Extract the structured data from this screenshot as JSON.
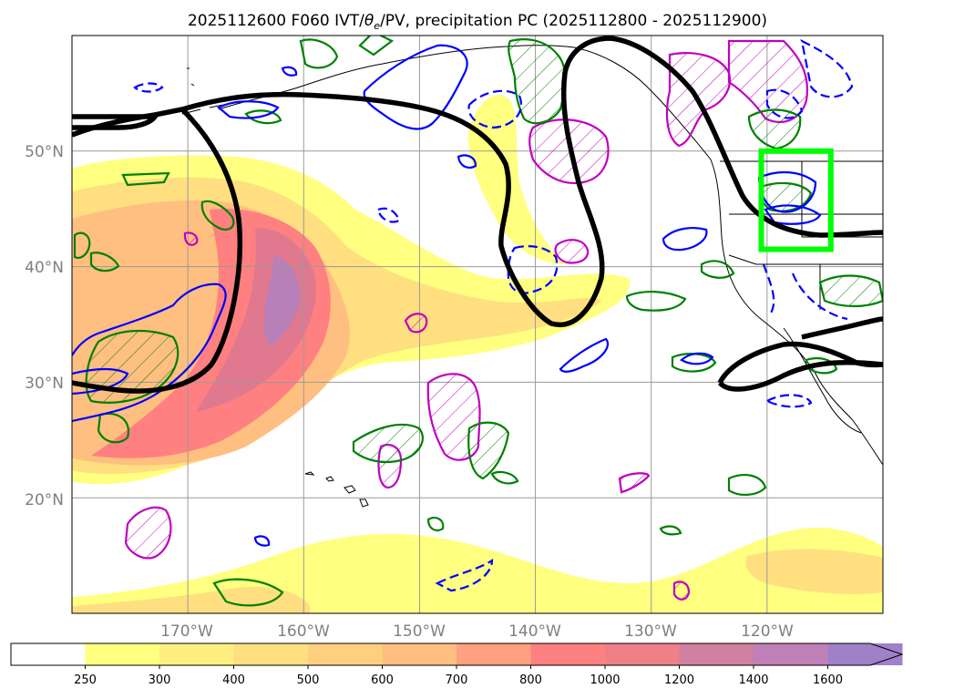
{
  "figure": {
    "title": "2025112600 F060 IVT/θe/PV, precipitation PC (2025112800 - 2025112900)",
    "title_main": "2025112600 F060 IVT/",
    "title_theta": "θ",
    "title_sub_e": "e",
    "title_rest": "/PV, precipitation PC (2025112800 - 2025112900)"
  },
  "map": {
    "lat_labels": [
      "50°N",
      "40°N",
      "30°N",
      "20°N"
    ],
    "lon_labels": [
      "170°W",
      "160°W",
      "150°W",
      "140°W",
      "130°W",
      "120°W"
    ],
    "extent": {
      "lon_min": -180,
      "lon_max": -110,
      "lat_min": 10,
      "lat_max": 60
    },
    "box_region": {
      "lon_min": -120.5,
      "lon_max": -114.5,
      "lat_min": 41.5,
      "lat_max": 50
    },
    "box_color": "#00ff00"
  },
  "chart_data": {
    "type": "heatmap",
    "variable": "IVT",
    "colorbar": {
      "levels": [
        250,
        300,
        400,
        500,
        600,
        700,
        800,
        1000,
        1200,
        1400,
        1600
      ],
      "labels": [
        "250",
        "300",
        "400",
        "500",
        "600",
        "700",
        "800",
        "1000",
        "1200",
        "1400",
        "1600"
      ],
      "colors": [
        "#ffff80",
        "#ffef80",
        "#ffdf80",
        "#ffcf80",
        "#ffbf80",
        "#ffa080",
        "#ff8080",
        "#f08088",
        "#d080a0",
        "#c080b8",
        "#a080c8"
      ],
      "extend": "max"
    },
    "overlays": [
      {
        "name": "theta-e contour",
        "color": "#000000"
      },
      {
        "name": "PV contour",
        "color": "#0000ff"
      },
      {
        "name": "precipitation PC contour",
        "color": "#008000"
      },
      {
        "name": "precipitation PC hatched",
        "color": "#c000c0"
      }
    ]
  }
}
